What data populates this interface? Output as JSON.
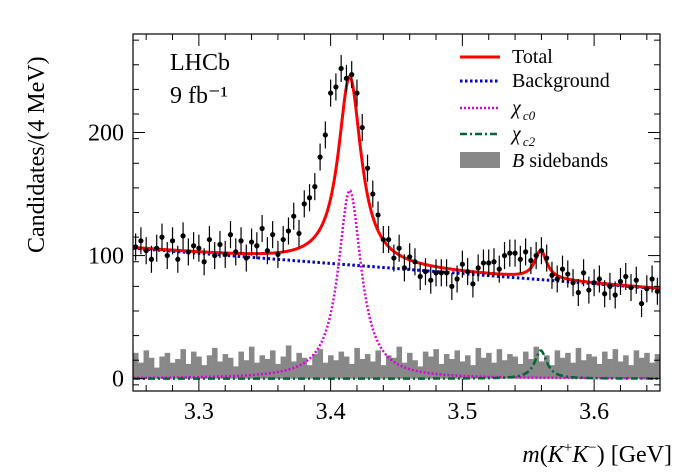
{
  "chart_data": {
    "type": "histogram-fit",
    "experiment": "LHCb",
    "luminosity": "9 fb⁻¹",
    "xlabel": "m(K⁺K⁻) [GeV]",
    "ylabel": "Candidates/(4 MeV)",
    "xlim": [
      3.25,
      3.65
    ],
    "ylim": [
      -10,
      280
    ],
    "xticks": [
      3.3,
      3.4,
      3.5,
      3.6
    ],
    "xtick_labels": [
      "3.3",
      "3.4",
      "3.5",
      "3.6"
    ],
    "yticks": [
      0,
      100,
      200
    ],
    "ytick_labels": [
      "0",
      "100",
      "200"
    ],
    "bin_width": 0.004,
    "legend": {
      "position": "top-right",
      "entries": [
        {
          "label": "Total",
          "style": "solid",
          "color": "#ff0000"
        },
        {
          "label": "Background",
          "style": "dotted",
          "color": "#0000cc"
        },
        {
          "label": "χ",
          "sub": "c0",
          "style": "dotted",
          "color": "#dd00dd"
        },
        {
          "label": "χ",
          "sub": "c2",
          "style": "dashdot",
          "color": "#006633"
        },
        {
          "label": " sidebands",
          "prefix": "B",
          "style": "fill",
          "color": "#888888"
        }
      ]
    },
    "components": {
      "background": {
        "y_at_3_25": 106,
        "y_at_3_65": 73
      },
      "chi_c0": {
        "mass": 3.4145,
        "width": 0.0105,
        "height": 153
      },
      "chi_c2": {
        "mass": 3.5595,
        "width": 0.0055,
        "height": 23
      }
    },
    "data_points": {
      "x": [
        3.252,
        3.256,
        3.26,
        3.264,
        3.268,
        3.272,
        3.276,
        3.28,
        3.284,
        3.288,
        3.292,
        3.296,
        3.3,
        3.304,
        3.308,
        3.312,
        3.316,
        3.32,
        3.324,
        3.328,
        3.332,
        3.336,
        3.34,
        3.344,
        3.348,
        3.352,
        3.356,
        3.36,
        3.364,
        3.368,
        3.372,
        3.376,
        3.38,
        3.384,
        3.388,
        3.392,
        3.396,
        3.4,
        3.404,
        3.408,
        3.412,
        3.416,
        3.42,
        3.424,
        3.428,
        3.432,
        3.436,
        3.44,
        3.444,
        3.448,
        3.452,
        3.456,
        3.46,
        3.464,
        3.468,
        3.472,
        3.476,
        3.48,
        3.484,
        3.488,
        3.492,
        3.496,
        3.5,
        3.504,
        3.508,
        3.512,
        3.516,
        3.52,
        3.524,
        3.528,
        3.532,
        3.536,
        3.54,
        3.544,
        3.548,
        3.552,
        3.556,
        3.56,
        3.564,
        3.568,
        3.572,
        3.576,
        3.58,
        3.584,
        3.588,
        3.592,
        3.596,
        3.6,
        3.604,
        3.608,
        3.612,
        3.616,
        3.62,
        3.624,
        3.628,
        3.632,
        3.636,
        3.64,
        3.644,
        3.648
      ],
      "y": [
        107,
        112,
        104,
        97,
        106,
        115,
        100,
        112,
        97,
        116,
        103,
        108,
        106,
        95,
        113,
        100,
        109,
        101,
        117,
        103,
        112,
        98,
        111,
        108,
        122,
        104,
        117,
        101,
        113,
        120,
        132,
        118,
        142,
        147,
        156,
        180,
        198,
        232,
        237,
        252,
        244,
        247,
        232,
        204,
        171,
        150,
        133,
        113,
        113,
        98,
        106,
        90,
        99,
        95,
        83,
        87,
        80,
        86,
        86,
        86,
        75,
        81,
        93,
        87,
        77,
        90,
        94,
        94,
        95,
        89,
        100,
        102,
        102,
        97,
        103,
        96,
        100,
        104,
        98,
        84,
        81,
        89,
        85,
        78,
        70,
        86,
        72,
        78,
        81,
        69,
        75,
        68,
        79,
        83,
        74,
        80,
        61,
        73,
        81,
        71
      ],
      "err": 11
    },
    "sidebands": {
      "x_start": 3.25,
      "bin_width": 0.004,
      "values": [
        21,
        13,
        23,
        17,
        9,
        18,
        21,
        13,
        16,
        24,
        12,
        22,
        18,
        11,
        19,
        25,
        14,
        20,
        17,
        10,
        22,
        15,
        26,
        13,
        19,
        16,
        23,
        12,
        18,
        27,
        14,
        21,
        17,
        11,
        20,
        24,
        13,
        19,
        15,
        22,
        18,
        12,
        25,
        16,
        20,
        14,
        23,
        11,
        19,
        17,
        26,
        13,
        21,
        15,
        10,
        22,
        18,
        24,
        12,
        20,
        16,
        23,
        14,
        19,
        11,
        25,
        17,
        21,
        13,
        24,
        15,
        20,
        18,
        12,
        22,
        16,
        26,
        14,
        19,
        11,
        23,
        17,
        21,
        13,
        25,
        15,
        20,
        18,
        12,
        22,
        16,
        24,
        14,
        19,
        11,
        23,
        17,
        21,
        13,
        20
      ]
    }
  }
}
